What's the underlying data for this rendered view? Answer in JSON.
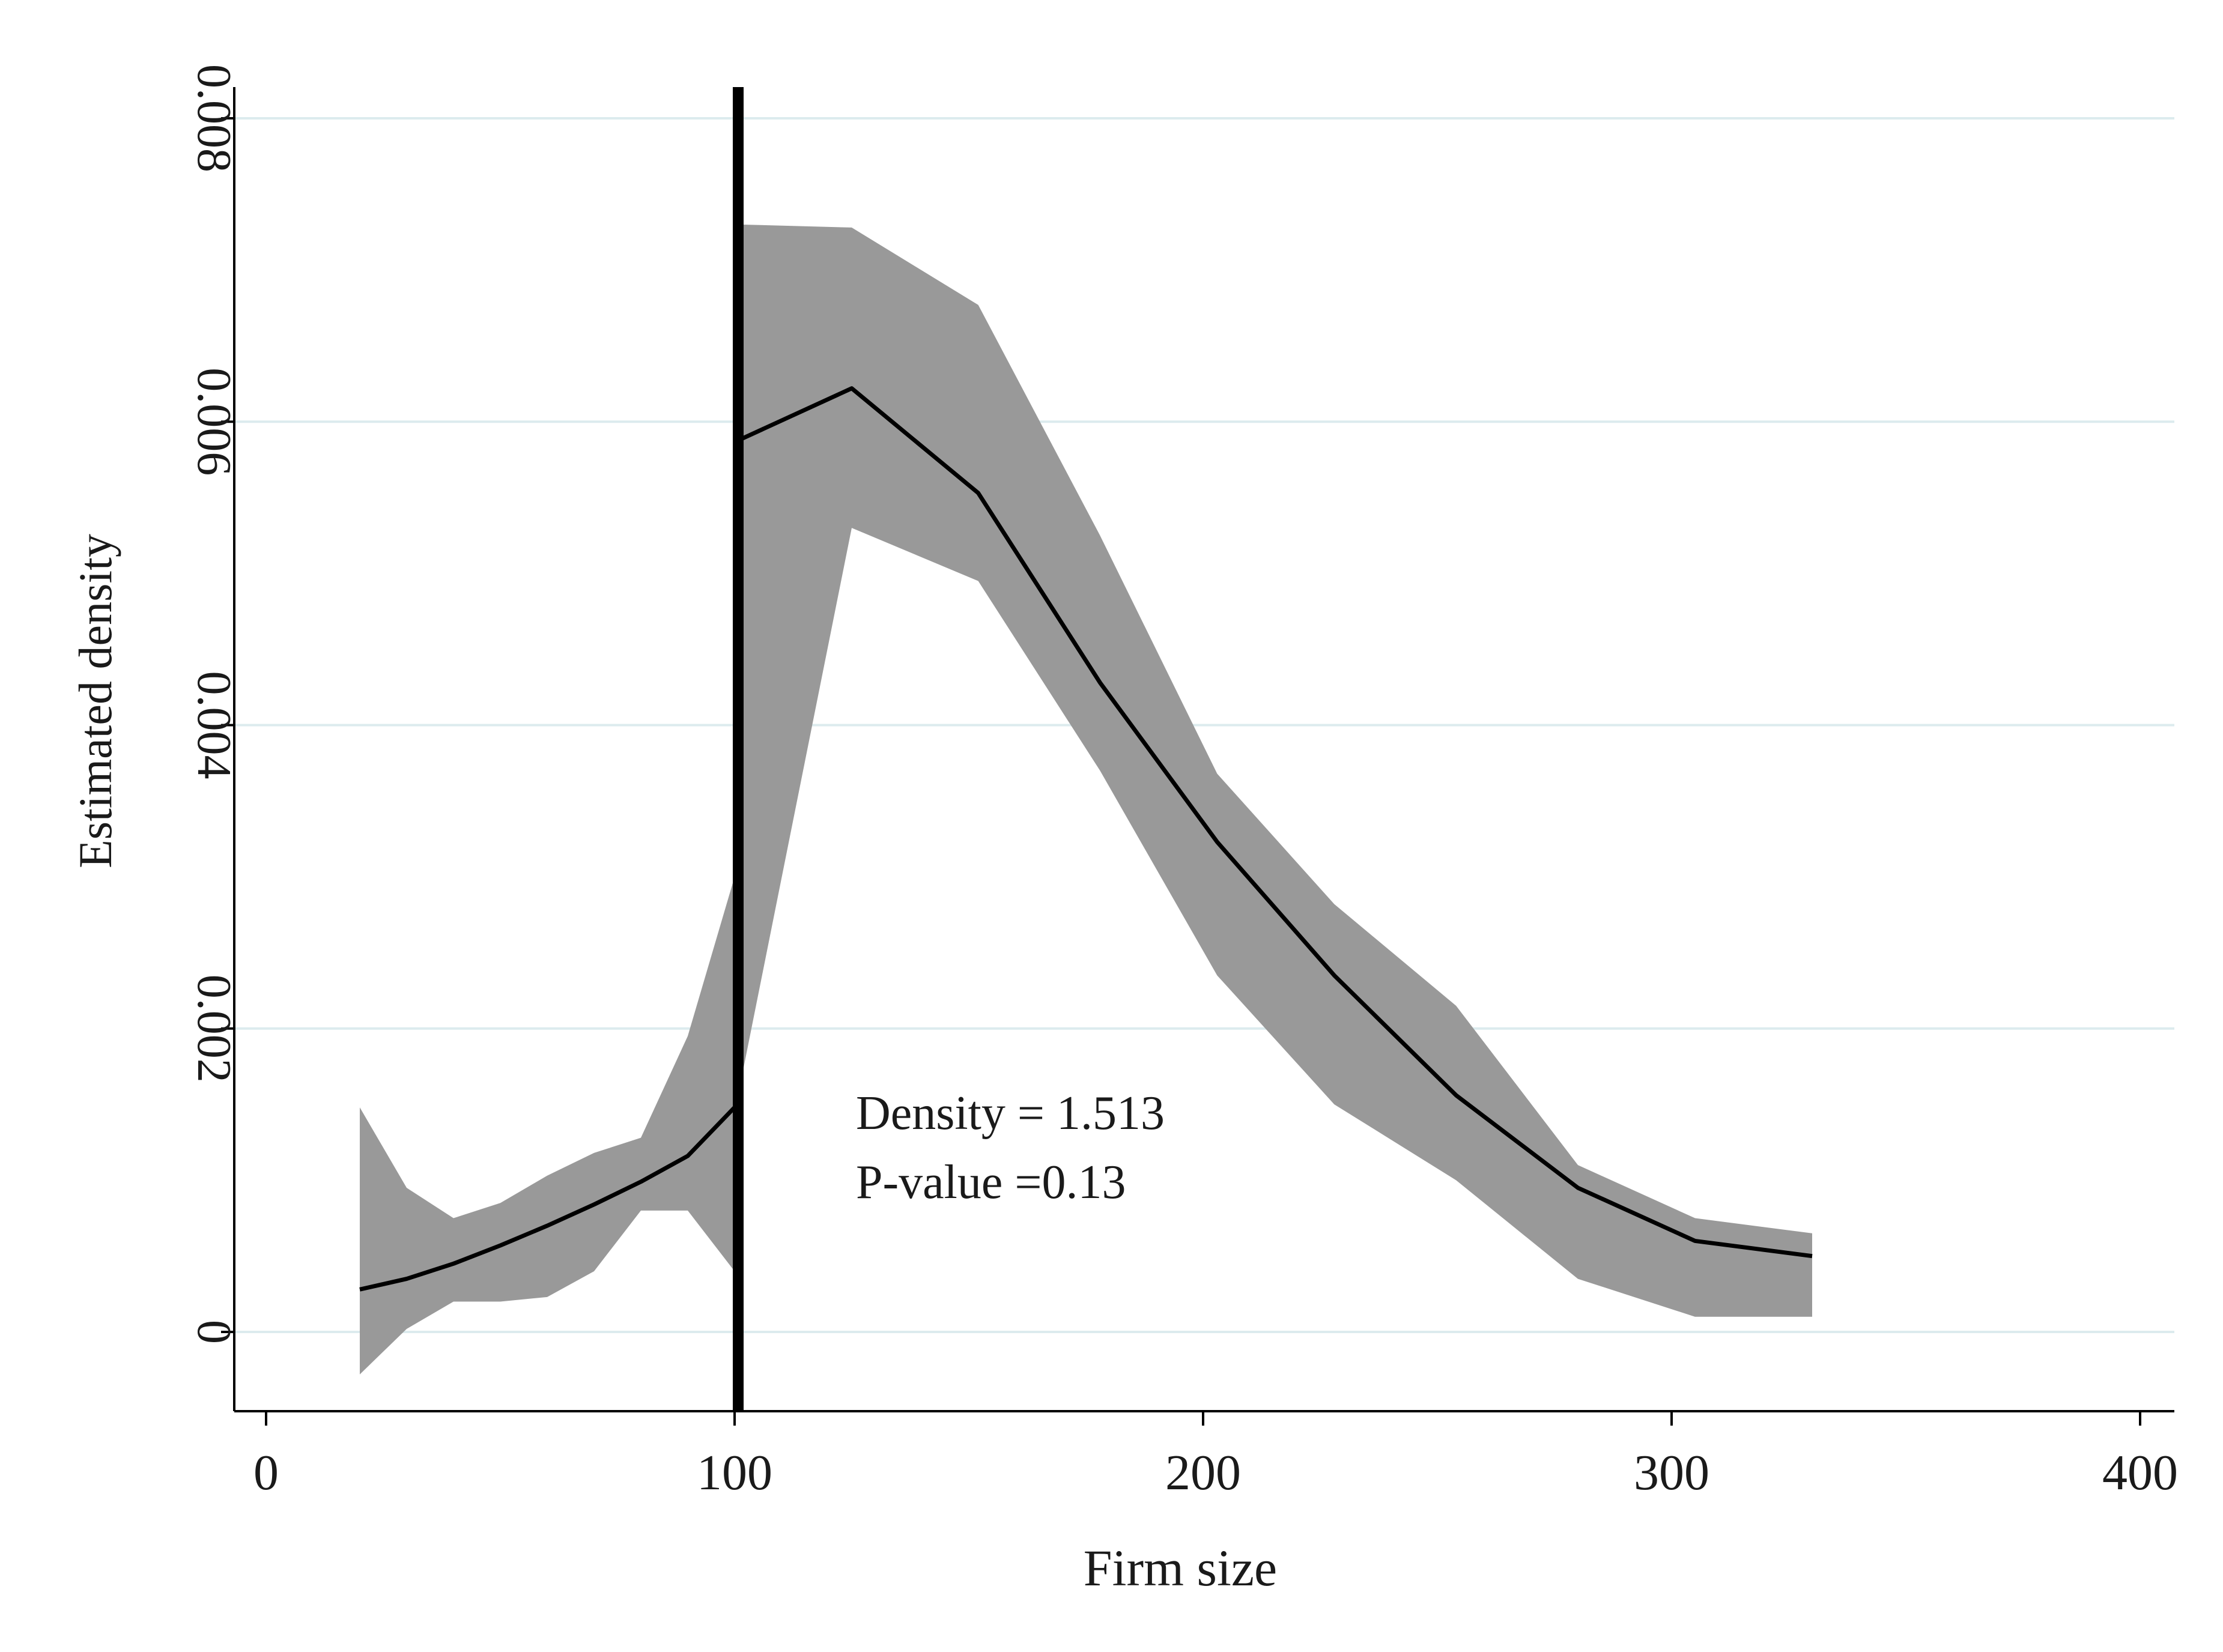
{
  "chart_data": {
    "type": "line",
    "title": "",
    "xlabel": "Firm size",
    "ylabel": "Estimated density",
    "xlim": [
      0,
      400
    ],
    "ylim": [
      -0.0005,
      0.0082
    ],
    "x_ticks": [
      0,
      100,
      200,
      300,
      400
    ],
    "x_tick_labels": [
      "0",
      "100",
      "200",
      "300",
      "400"
    ],
    "y_ticks": [
      0,
      0.002,
      0.004,
      0.006,
      0.008
    ],
    "y_tick_labels": [
      "0",
      "0.002",
      "0.004",
      "0.006",
      "0.008"
    ],
    "grid": "horizontal",
    "cutoff": 100,
    "annotations": [
      "Density = 1.513",
      "P-value =0.13"
    ],
    "colors": {
      "band": "#999999",
      "line": "#000000",
      "grid": "#dcebee",
      "frame": "#ffffff"
    },
    "segments": [
      {
        "side": "left",
        "x": [
          20,
          30,
          40,
          50,
          60,
          70,
          80,
          90,
          100
        ],
        "y": [
          0.00028,
          0.00035,
          0.00045,
          0.00057,
          0.0007,
          0.00084,
          0.00099,
          0.00116,
          0.00148
        ],
        "lower": [
          -0.00028,
          2e-05,
          0.0002,
          0.0002,
          0.00023,
          0.0004,
          0.0008,
          0.0008,
          0.0004
        ],
        "upper": [
          0.00148,
          0.00095,
          0.00075,
          0.00085,
          0.00103,
          0.00118,
          0.00128,
          0.00195,
          0.003
        ]
      },
      {
        "side": "right",
        "x": [
          101,
          125,
          152,
          178,
          203,
          228,
          254,
          280,
          305,
          330
        ],
        "y": [
          0.00588,
          0.00622,
          0.00553,
          0.00428,
          0.00323,
          0.00235,
          0.00156,
          0.00095,
          0.0006,
          0.0005
        ],
        "lower": [
          0.0016,
          0.0053,
          0.00495,
          0.0037,
          0.00235,
          0.0015,
          0.001,
          0.00035,
          0.0001,
          0.0001
        ],
        "upper": [
          0.0073,
          0.00728,
          0.00677,
          0.00525,
          0.00368,
          0.00282,
          0.00215,
          0.0011,
          0.00075,
          0.00065
        ]
      }
    ]
  }
}
